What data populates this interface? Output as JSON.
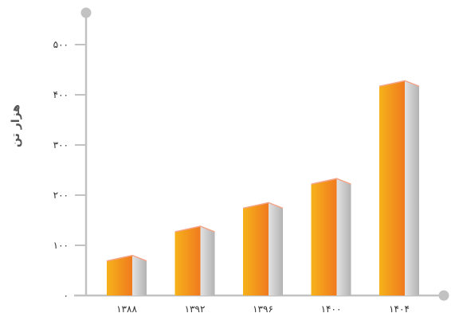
{
  "chart_data": {
    "type": "bar",
    "title": "",
    "xlabel": "",
    "ylabel": "هزار تن",
    "categories": [
      "۱۳۸۸",
      "۱۳۹۲",
      "۱۳۹۶",
      "۱۴۰۰",
      "۱۴۰۴"
    ],
    "values": [
      80,
      138,
      185,
      233,
      428
    ],
    "ylim": [
      0,
      500
    ],
    "yticks": [
      0,
      100,
      200,
      300,
      400,
      500
    ],
    "ytick_labels": [
      "۰",
      "۱۰۰",
      "۲۰۰",
      "۳۰۰",
      "۴۰۰",
      "۵۰۰"
    ],
    "grid": false,
    "bar_style": "3d",
    "colors": {
      "bar_front_start": "#f6b21a",
      "bar_front_end": "#f07a1f",
      "bar_side_light": "#e2e2e2",
      "bar_side_dark": "#b3b3b3",
      "bar_top": "#f4a58a",
      "axis": "#c2c2c2"
    }
  }
}
